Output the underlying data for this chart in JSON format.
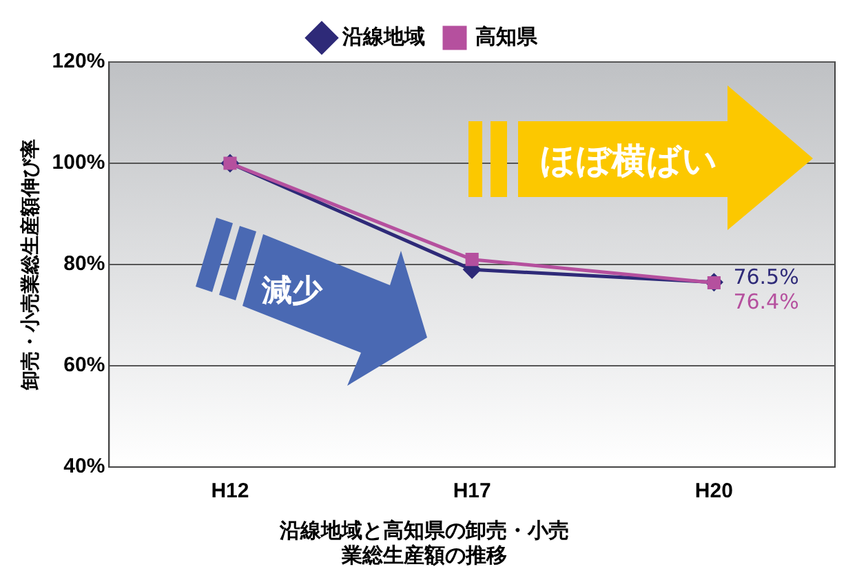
{
  "chart_data": {
    "type": "line",
    "title": "沿線地域と高知県の卸売・小売業総生産額の推移",
    "ylabel": "卸売・小売業総生産額伸び率",
    "categories": [
      "H12",
      "H17",
      "H20"
    ],
    "series": [
      {
        "name": "沿線地域",
        "color": "#2e2a78",
        "marker": "diamond",
        "values": [
          100,
          79,
          76.5
        ],
        "value_labels": [
          null,
          null,
          "76.5%"
        ]
      },
      {
        "name": "高知県",
        "color": "#b5509e",
        "marker": "square",
        "values": [
          100,
          81,
          76.4
        ],
        "value_labels": [
          null,
          null,
          "76.4%"
        ]
      }
    ],
    "ylim": [
      40,
      120
    ],
    "yticks": [
      {
        "value": 40,
        "label": "40%"
      },
      {
        "value": 60,
        "label": "60%"
      },
      {
        "value": 80,
        "label": "80%"
      },
      {
        "value": 100,
        "label": "100%"
      },
      {
        "value": 120,
        "label": "120%"
      }
    ],
    "grid": "y",
    "legend": "top",
    "annotations": [
      "減少",
      "ほぼ横ばい"
    ]
  }
}
